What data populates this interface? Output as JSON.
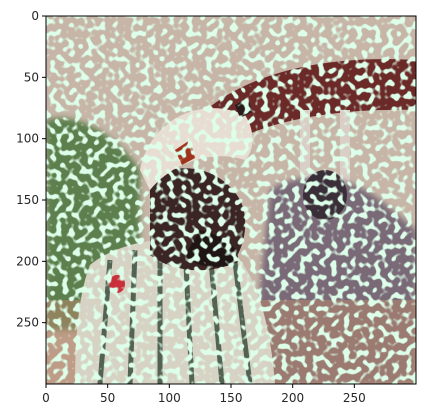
{
  "figure": {
    "kind": "image-plot",
    "image_extent": {
      "x": [
        0,
        300
      ],
      "y": [
        300,
        0
      ]
    },
    "x_ticks": [
      0,
      50,
      100,
      150,
      200,
      250
    ],
    "y_ticks": [
      0,
      50,
      100,
      150,
      200,
      250
    ],
    "x_tick_labels": [
      "0",
      "50",
      "100",
      "150",
      "200",
      "250"
    ],
    "y_tick_labels": [
      "0",
      "50",
      "100",
      "150",
      "200",
      "250"
    ],
    "image": {
      "subject": "man in white cap and striped shirt in profile facing right",
      "effect": "bright green-cyan speckle texture overlay",
      "colors": {
        "sky": "#c7b6a8",
        "awning": "#6b2a28",
        "foliage": "#5d7f4e",
        "cap": "#e8ddd2",
        "skin": "#3a2424",
        "shirt": "#d7d3c4",
        "stripe": "#3b5040",
        "crowd": "#7a6a78",
        "speckle": "#b9ffd0"
      }
    }
  }
}
